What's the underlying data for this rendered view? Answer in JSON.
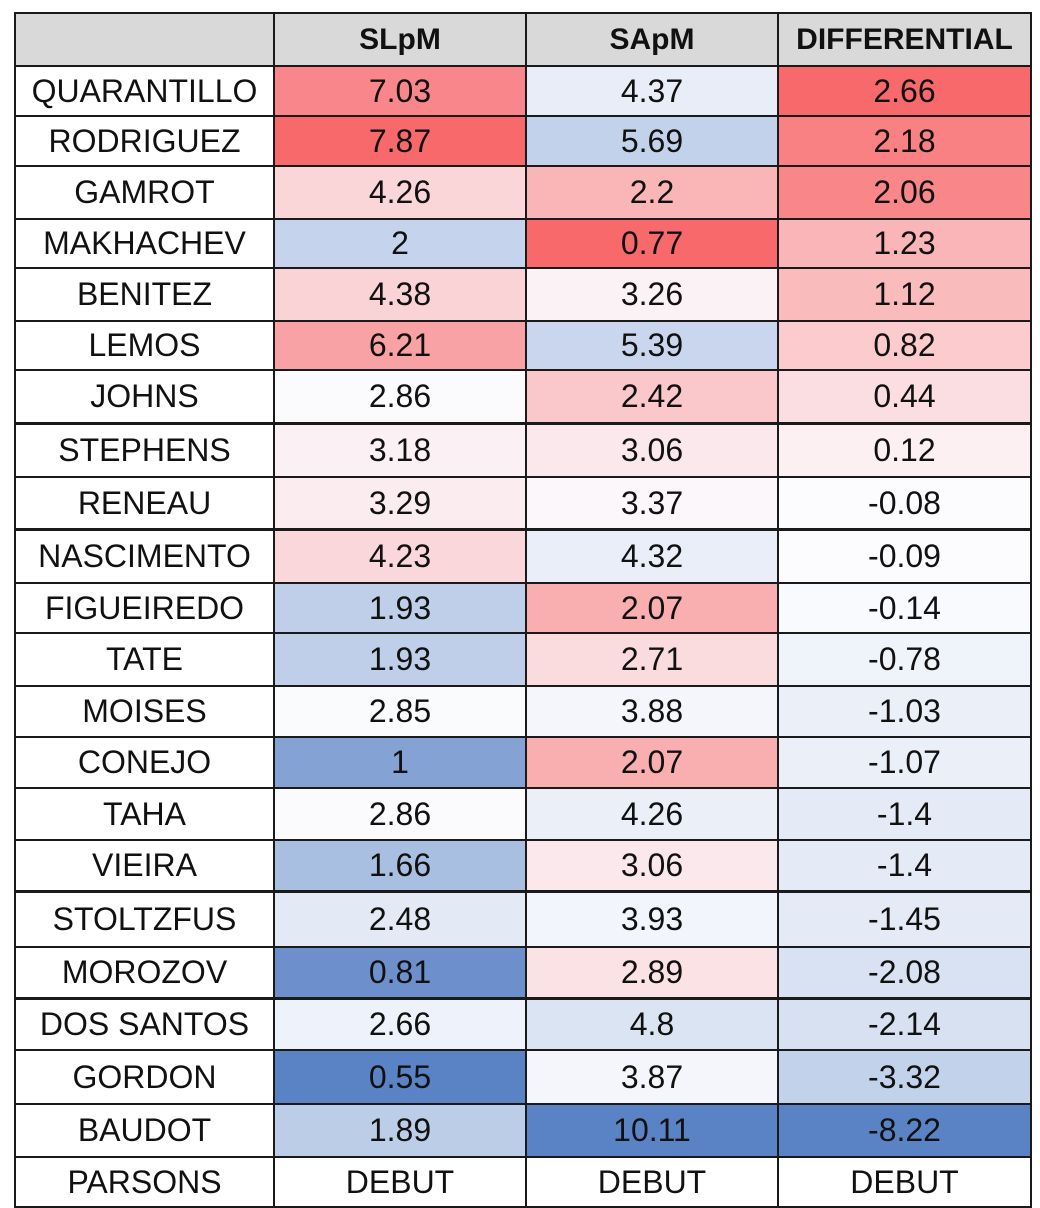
{
  "chart_data": {
    "type": "table",
    "columns": [
      "",
      "SLpM",
      "SApM",
      "DIFFERENTIAL"
    ],
    "rows": [
      {
        "name": "QUARANTILLO",
        "slpm": "7.03",
        "sapm": "4.37",
        "diff": "2.66",
        "colors": [
          "#f8868a",
          "#e8edf7",
          "#f8696b"
        ]
      },
      {
        "name": "RODRIGUEZ",
        "slpm": "7.87",
        "sapm": "5.69",
        "diff": "2.18",
        "colors": [
          "#f8696b",
          "#c3d2eb",
          "#f98184"
        ]
      },
      {
        "name": "GAMROT",
        "slpm": "4.26",
        "sapm": "2.2",
        "diff": "2.06",
        "colors": [
          "#fad6d9",
          "#fab5b7",
          "#f9878a"
        ]
      },
      {
        "name": "MAKHACHEV",
        "slpm": "2",
        "sapm": "0.77",
        "diff": "1.23",
        "colors": [
          "#c5d3ec",
          "#f8696b",
          "#fab5b8"
        ]
      },
      {
        "name": "BENITEZ",
        "slpm": "4.38",
        "sapm": "3.26",
        "diff": "1.12",
        "colors": [
          "#fad3d6",
          "#fbf2f5",
          "#fabbbd"
        ]
      },
      {
        "name": "LEMOS",
        "slpm": "6.21",
        "sapm": "5.39",
        "diff": "0.82",
        "colors": [
          "#f9a2a5",
          "#c9d6ed",
          "#fbcbce"
        ]
      },
      {
        "name": "JOHNS",
        "slpm": "2.86",
        "sapm": "2.42",
        "diff": "0.44",
        "colors": [
          "#fbfbfd",
          "#fac7ca",
          "#fbdee1"
        ]
      },
      {
        "name": "STEPHENS",
        "slpm": "3.18",
        "sapm": "3.06",
        "diff": "0.12",
        "colors": [
          "#fbf0f3",
          "#fbe8ec",
          "#fcf0f3"
        ]
      },
      {
        "name": "RENEAU",
        "slpm": "3.29",
        "sapm": "3.37",
        "diff": "-0.08",
        "colors": [
          "#fbecef",
          "#fcf7fa",
          "#fcfbfd"
        ]
      },
      {
        "name": "NASCIMENTO",
        "slpm": "4.23",
        "sapm": "4.32",
        "diff": "-0.09",
        "colors": [
          "#fad7da",
          "#e9eef8",
          "#fcfcfe"
        ]
      },
      {
        "name": "FIGUEIREDO",
        "slpm": "1.93",
        "sapm": "2.07",
        "diff": "-0.14",
        "colors": [
          "#bfcfe9",
          "#f9aeb0",
          "#f9fafd"
        ]
      },
      {
        "name": "TATE",
        "slpm": "1.93",
        "sapm": "2.71",
        "diff": "-0.78",
        "colors": [
          "#bfcfe9",
          "#fadcdf",
          "#eff3fa"
        ]
      },
      {
        "name": "MOISES",
        "slpm": "2.85",
        "sapm": "3.88",
        "diff": "-1.03",
        "colors": [
          "#fafbfd",
          "#f4f6fb",
          "#ebf0f8"
        ]
      },
      {
        "name": "CONEJO",
        "slpm": "1",
        "sapm": "2.07",
        "diff": "-1.07",
        "colors": [
          "#84a3d4",
          "#f9aeb0",
          "#eaeff8"
        ]
      },
      {
        "name": "TAHA",
        "slpm": "2.86",
        "sapm": "4.26",
        "diff": "-1.4",
        "colors": [
          "#fbfbfd",
          "#ebf0f8",
          "#e5ebf6"
        ]
      },
      {
        "name": "VIEIRA",
        "slpm": "1.66",
        "sapm": "3.06",
        "diff": "-1.4",
        "colors": [
          "#a9bfe2",
          "#fbe8ec",
          "#e5ebf6"
        ]
      },
      {
        "name": "STOLTZFUS",
        "slpm": "2.48",
        "sapm": "3.93",
        "diff": "-1.45",
        "colors": [
          "#e3eaf6",
          "#f2f5fb",
          "#e4eaf6"
        ]
      },
      {
        "name": "MOROZOV",
        "slpm": "0.81",
        "sapm": "2.89",
        "diff": "-2.08",
        "colors": [
          "#6d90cc",
          "#fbe2e5",
          "#d9e2f2"
        ]
      },
      {
        "name": "DOS SANTOS",
        "slpm": "2.66",
        "sapm": "4.8",
        "diff": "-2.14",
        "colors": [
          "#eef2fa",
          "#dbe4f3",
          "#d8e1f2"
        ]
      },
      {
        "name": "GORDON",
        "slpm": "0.55",
        "sapm": "3.87",
        "diff": "-3.32",
        "colors": [
          "#5a83c6",
          "#f4f6fb",
          "#c3d2eb"
        ]
      },
      {
        "name": "BAUDOT",
        "slpm": "1.89",
        "sapm": "10.11",
        "diff": "-8.22",
        "colors": [
          "#bccde8",
          "#5a83c6",
          "#5a83c6"
        ]
      },
      {
        "name": "PARSONS",
        "slpm": "DEBUT",
        "sapm": "DEBUT",
        "diff": "DEBUT",
        "colors": [
          "#ffffff",
          "#ffffff",
          "#ffffff"
        ]
      }
    ]
  }
}
